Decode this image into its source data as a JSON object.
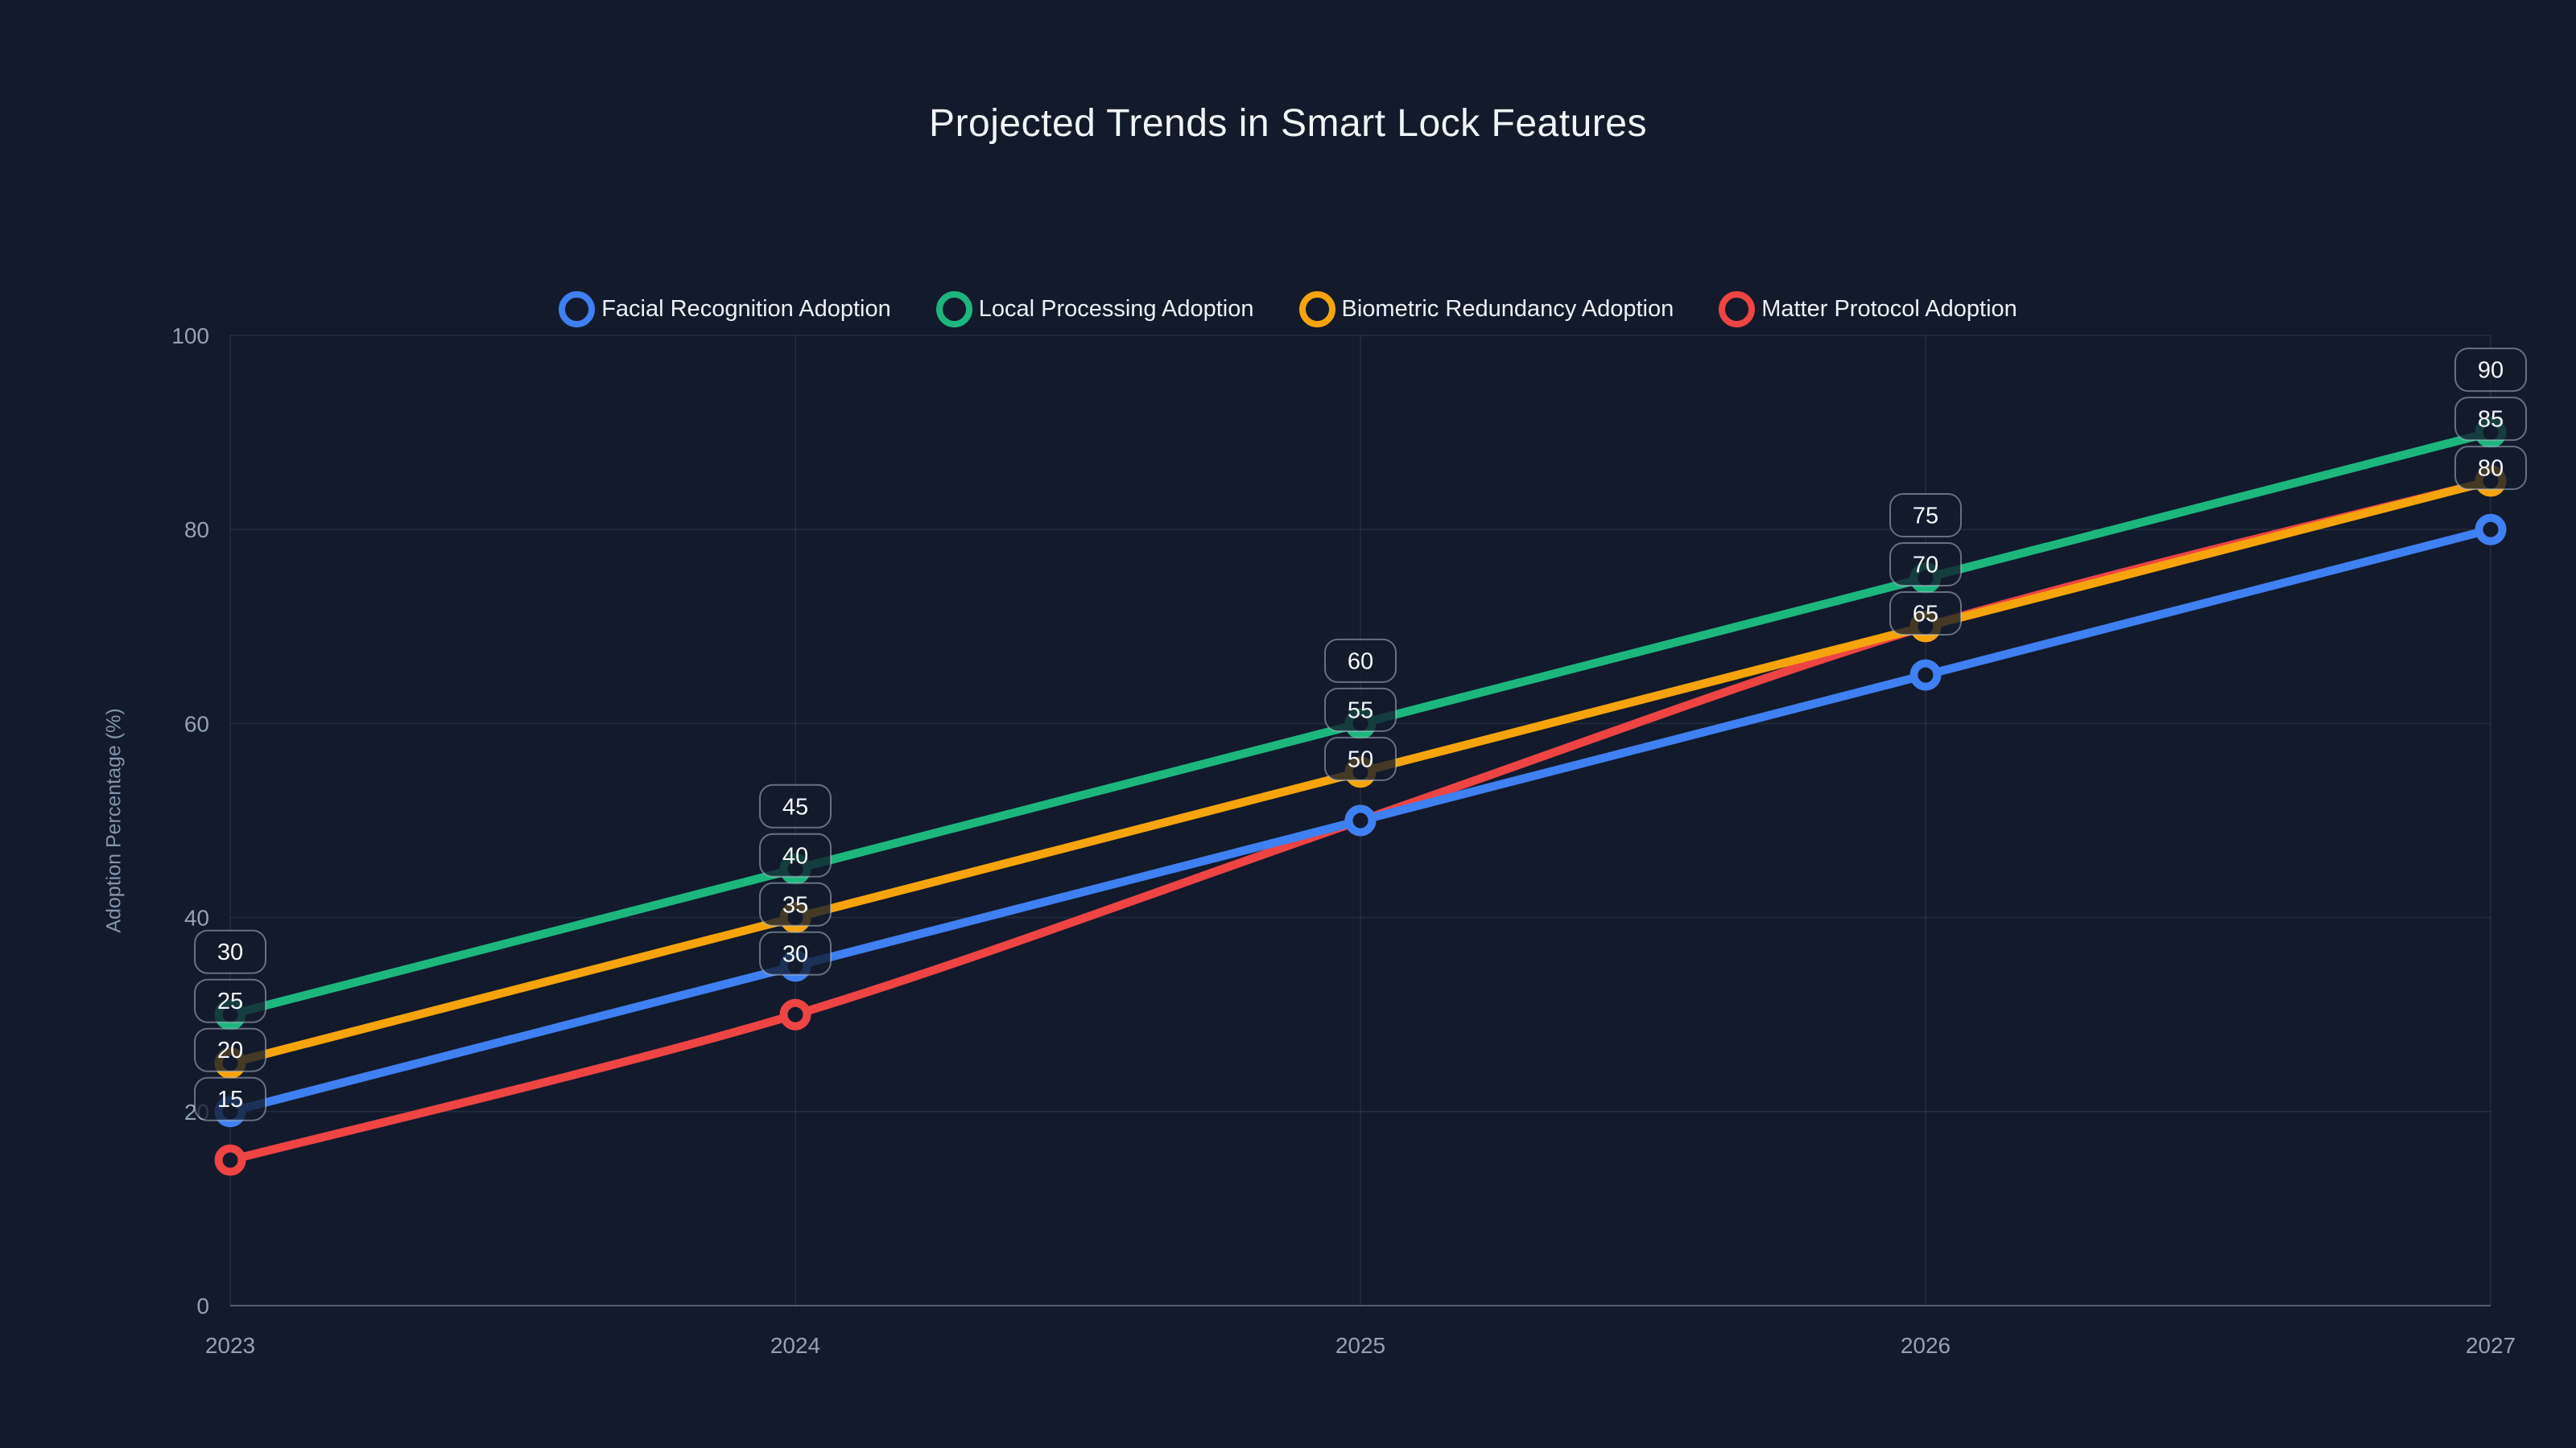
{
  "chart_data": {
    "type": "line",
    "title": "Projected Trends in Smart Lock Features",
    "xlabel": "",
    "ylabel": "Adoption Percentage (%)",
    "x": [
      "2023",
      "2024",
      "2025",
      "2026",
      "2027"
    ],
    "ylim": [
      0,
      100
    ],
    "yticks": [
      0,
      20,
      40,
      60,
      80,
      100
    ],
    "grid": true,
    "legend_position": "top",
    "point_labels_visible": true,
    "series": [
      {
        "name": "Facial Recognition Adoption",
        "color": "#3f80f2",
        "values": [
          20,
          35,
          50,
          65,
          80
        ]
      },
      {
        "name": "Local Processing Adoption",
        "color": "#1db77d",
        "values": [
          30,
          45,
          60,
          75,
          90
        ]
      },
      {
        "name": "Biometric Redundancy Adoption",
        "color": "#f5a40b",
        "values": [
          25,
          40,
          55,
          70,
          85
        ]
      },
      {
        "name": "Matter Protocol Adoption",
        "color": "#ee4444",
        "values": [
          15,
          30,
          50,
          70,
          85
        ]
      }
    ]
  },
  "theme": {
    "background": "#121a2b",
    "title_color": "#f2f6fa",
    "tick_color": "#93a2b8",
    "grid_color": "rgba(148,163,184,0.14)",
    "badge_border": "rgba(186,199,214,0.5)"
  }
}
